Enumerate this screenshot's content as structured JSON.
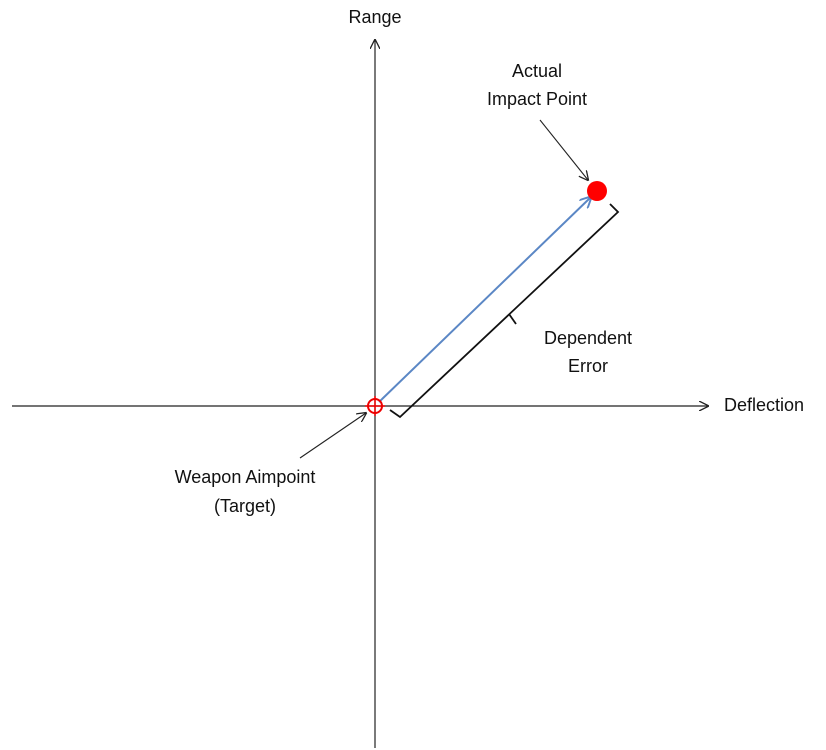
{
  "axes": {
    "vertical": "Range",
    "horizontal": "Deflection"
  },
  "annotations": {
    "impact": [
      "Actual",
      "Impact Point"
    ],
    "error": [
      "Dependent",
      "Error"
    ],
    "aimpoint": [
      "Weapon Aimpoint",
      "(Target)"
    ]
  }
}
